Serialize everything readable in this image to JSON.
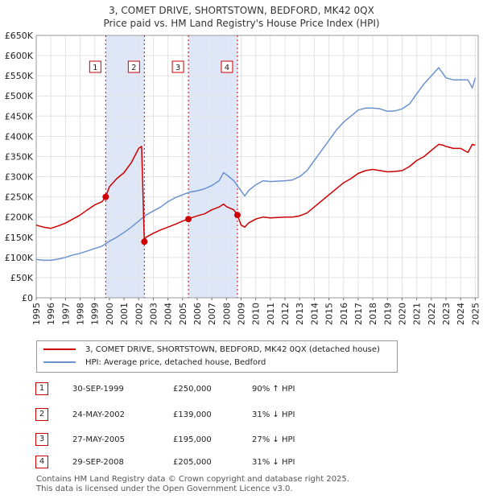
{
  "title_line1": "3, COMET DRIVE, SHORTSTOWN, BEDFORD, MK42 0QX",
  "title_line2": "Price paid vs. HM Land Registry's House Price Index (HPI)",
  "colors": {
    "property": "#cc0000",
    "hpi": "#6a92cf",
    "shade": "#dde7f7",
    "marker": "#cc0000"
  },
  "chart_data": {
    "type": "line",
    "title": "3, COMET DRIVE, SHORTSTOWN, BEDFORD, MK42 0QX",
    "subtitle": "Price paid vs. HM Land Registry's House Price Index (HPI)",
    "xlabel": "",
    "ylabel": "",
    "xlim": [
      1995,
      2025.2
    ],
    "ylim": [
      0,
      650000
    ],
    "y_ticks": [
      {
        "value": 0,
        "label": "£0"
      },
      {
        "value": 50000,
        "label": "£50K"
      },
      {
        "value": 100000,
        "label": "£100K"
      },
      {
        "value": 150000,
        "label": "£150K"
      },
      {
        "value": 200000,
        "label": "£200K"
      },
      {
        "value": 250000,
        "label": "£250K"
      },
      {
        "value": 300000,
        "label": "£300K"
      },
      {
        "value": 350000,
        "label": "£350K"
      },
      {
        "value": 400000,
        "label": "£400K"
      },
      {
        "value": 450000,
        "label": "£450K"
      },
      {
        "value": 500000,
        "label": "£500K"
      },
      {
        "value": 550000,
        "label": "£550K"
      },
      {
        "value": 600000,
        "label": "£600K"
      },
      {
        "value": 650000,
        "label": "£650K"
      }
    ],
    "x_ticks": [
      "1995",
      "1996",
      "1997",
      "1998",
      "1999",
      "2000",
      "2001",
      "2002",
      "2003",
      "2004",
      "2005",
      "2006",
      "2007",
      "2008",
      "2009",
      "2010",
      "2011",
      "2012",
      "2013",
      "2014",
      "2015",
      "2016",
      "2017",
      "2018",
      "2019",
      "2020",
      "2021",
      "2022",
      "2023",
      "2024",
      "2025"
    ],
    "grid": true,
    "legend_position": "bottom",
    "shaded_ranges": [
      [
        1999.75,
        2002.39
      ],
      [
        2005.4,
        2008.75
      ]
    ],
    "series": [
      {
        "name": "3, COMET DRIVE, SHORTSTOWN, BEDFORD, MK42 0QX (detached house)",
        "x": [
          1995,
          1995.5,
          1996,
          1996.5,
          1997,
          1997.5,
          1998,
          1998.5,
          1999,
          1999.5,
          1999.75,
          2000,
          2000.5,
          2001,
          2001.5,
          2002,
          2002.2,
          2002.39,
          2002.5,
          2003,
          2003.5,
          2004,
          2004.5,
          2005,
          2005.4,
          2005.6,
          2006,
          2006.5,
          2007,
          2007.5,
          2007.8,
          2008,
          2008.5,
          2008.75,
          2009,
          2009.25,
          2009.5,
          2010,
          2010.5,
          2011,
          2011.5,
          2012,
          2012.5,
          2013,
          2013.5,
          2014,
          2014.5,
          2015,
          2015.5,
          2016,
          2016.5,
          2017,
          2017.5,
          2018,
          2018.5,
          2019,
          2019.5,
          2020,
          2020.5,
          2021,
          2021.5,
          2022,
          2022.5,
          2022.8,
          2023,
          2023.5,
          2024,
          2024.5,
          2024.8,
          2025
        ],
        "values": [
          180000,
          175000,
          172000,
          178000,
          185000,
          195000,
          205000,
          218000,
          230000,
          238000,
          250000,
          275000,
          295000,
          310000,
          335000,
          370000,
          375000,
          139000,
          150000,
          160000,
          168000,
          175000,
          182000,
          190000,
          195000,
          198000,
          203000,
          208000,
          218000,
          225000,
          232000,
          226000,
          218000,
          205000,
          180000,
          175000,
          185000,
          195000,
          200000,
          198000,
          199000,
          200000,
          200000,
          203000,
          210000,
          225000,
          240000,
          255000,
          270000,
          285000,
          295000,
          308000,
          315000,
          318000,
          315000,
          312000,
          313000,
          315000,
          325000,
          340000,
          350000,
          365000,
          380000,
          378000,
          375000,
          370000,
          370000,
          360000,
          380000,
          378000
        ]
      },
      {
        "name": "HPI: Average price, detached house, Bedford",
        "x": [
          1995,
          1995.5,
          1996,
          1996.5,
          1997,
          1997.5,
          1998,
          1998.5,
          1999,
          1999.5,
          2000,
          2000.5,
          2001,
          2001.5,
          2002,
          2002.5,
          2003,
          2003.5,
          2004,
          2004.5,
          2005,
          2005.5,
          2006,
          2006.5,
          2007,
          2007.5,
          2007.8,
          2008,
          2008.5,
          2009,
          2009.25,
          2009.5,
          2010,
          2010.5,
          2011,
          2011.5,
          2012,
          2012.5,
          2013,
          2013.5,
          2014,
          2014.5,
          2015,
          2015.5,
          2016,
          2016.5,
          2017,
          2017.5,
          2018,
          2018.5,
          2019,
          2019.5,
          2020,
          2020.5,
          2021,
          2021.5,
          2022,
          2022.5,
          2022.8,
          2023,
          2023.5,
          2024,
          2024.5,
          2024.8,
          2025
        ],
        "values": [
          95000,
          93000,
          93000,
          96000,
          100000,
          106000,
          110000,
          116000,
          122000,
          128000,
          140000,
          150000,
          162000,
          175000,
          190000,
          205000,
          215000,
          225000,
          238000,
          248000,
          255000,
          262000,
          265000,
          270000,
          278000,
          290000,
          310000,
          305000,
          290000,
          265000,
          252000,
          265000,
          280000,
          290000,
          288000,
          289000,
          290000,
          292000,
          300000,
          315000,
          340000,
          365000,
          390000,
          415000,
          435000,
          450000,
          465000,
          470000,
          470000,
          468000,
          462000,
          463000,
          468000,
          480000,
          505000,
          530000,
          550000,
          570000,
          555000,
          545000,
          540000,
          540000,
          540000,
          520000,
          545000
        ]
      }
    ],
    "sale_markers": [
      {
        "id": "1",
        "x": 1999.75,
        "value": 250000
      },
      {
        "id": "2",
        "x": 2002.39,
        "value": 139000
      },
      {
        "id": "3",
        "x": 2005.4,
        "value": 195000
      },
      {
        "id": "4",
        "x": 2008.75,
        "value": 205000
      }
    ]
  },
  "legend": {
    "property_label": "3, COMET DRIVE, SHORTSTOWN, BEDFORD, MK42 0QX (detached house)",
    "hpi_label": "HPI: Average price, detached house, Bedford"
  },
  "transactions": [
    {
      "id": "1",
      "date": "30-SEP-1999",
      "price": "£250,000",
      "hpi": "90% ↑ HPI"
    },
    {
      "id": "2",
      "date": "24-MAY-2002",
      "price": "£139,000",
      "hpi": "31% ↓ HPI"
    },
    {
      "id": "3",
      "date": "27-MAY-2005",
      "price": "£195,000",
      "hpi": "27% ↓ HPI"
    },
    {
      "id": "4",
      "date": "29-SEP-2008",
      "price": "£205,000",
      "hpi": "31% ↓ HPI"
    }
  ],
  "footer": {
    "line1": "Contains HM Land Registry data © Crown copyright and database right 2025.",
    "line2": "This data is licensed under the Open Government Licence v3.0."
  }
}
